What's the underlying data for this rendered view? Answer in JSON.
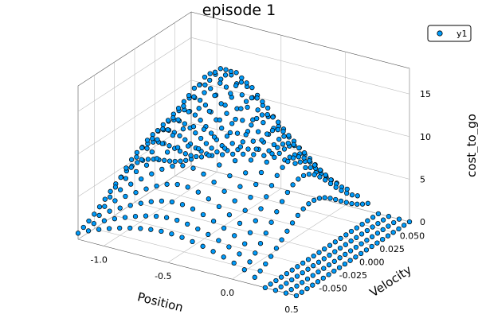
{
  "chart_data": {
    "type": "scatter",
    "title": "episode 1",
    "xlabel": "Position",
    "ylabel": "Velocity",
    "zlabel": "cost_to_go",
    "x_ticks": [
      "-1.0",
      "-0.5",
      "0.0",
      "0.5"
    ],
    "y_ticks": [
      "-0.050",
      "-0.025",
      "0.000",
      "0.025",
      "0.050"
    ],
    "z_ticks": [
      "0",
      "5",
      "10",
      "15"
    ],
    "xlim": [
      -1.2,
      0.5
    ],
    "ylim": [
      -0.07,
      0.07
    ],
    "zlim": [
      0,
      18
    ],
    "grid": true,
    "legend": {
      "position": "top-right",
      "entries": [
        "y1"
      ]
    },
    "series": [
      {
        "name": "y1",
        "color": "#009af9",
        "marker": "circle",
        "grid_x": {
          "min": -1.2,
          "max": 0.5,
          "count": 22
        },
        "grid_y": {
          "min": -0.07,
          "max": 0.07,
          "count": 22
        },
        "surface_summary": {
          "peak_value": 17,
          "peak_position": -0.5,
          "floor_value": 0,
          "description_of_shape": "dome peaking near position -0.5 at zero velocity, flat at 0 for positions > 0.2 and velocity edges"
        }
      }
    ]
  }
}
